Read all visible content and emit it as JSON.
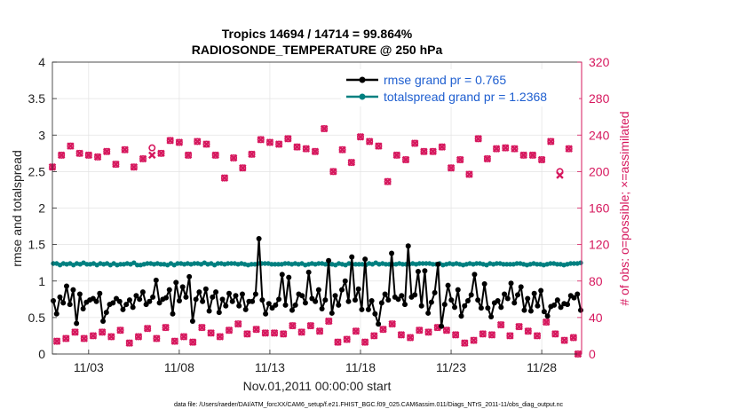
{
  "chart_data": {
    "type": "line",
    "title_line1": "Tropics 14694 / 14714 = 99.864%",
    "title_line2": "RADIOSONDE_TEMPERATURE @ 250 hPa",
    "xlabel": "Nov.01,2011 00:00:00 start",
    "ylabel_left": "rmse and totalspread",
    "ylabel_right": "# of obs: o=possible; ×=assimilated",
    "footer": "data file: /Users/raeder/DAI/ATM_forcXX/CAM6_setup/f.e21.FHIST_BGC.f09_025.CAM6assim.011/Diags_NTrS_2011-11/obs_diag_output.nc",
    "xlim": [
      1,
      30.2
    ],
    "ylim_left": [
      0,
      4
    ],
    "ylim_right": [
      0,
      320
    ],
    "x_ticks": [
      3,
      8,
      13,
      18,
      23,
      28
    ],
    "x_tick_labels": [
      "11/03",
      "11/08",
      "11/13",
      "11/18",
      "11/23",
      "11/28"
    ],
    "y_left_ticks": [
      0,
      0.5,
      1,
      1.5,
      2,
      2.5,
      3,
      3.5,
      4
    ],
    "y_left_tick_labels": [
      "0",
      "0.5",
      "1",
      "1.5",
      "2",
      "2.5",
      "3",
      "3.5",
      "4"
    ],
    "y_right_ticks": [
      0,
      40,
      80,
      120,
      160,
      200,
      240,
      280,
      320
    ],
    "y_right_tick_labels": [
      "0",
      "40",
      "80",
      "120",
      "160",
      "200",
      "240",
      "280",
      "320"
    ],
    "colors": {
      "rmse": "#000000",
      "spread": "#008080",
      "obs": "#d6185e",
      "legend_text": "#1f5fd0"
    },
    "series": [
      {
        "name": "rmse grand pr = 0.765",
        "axis": "left",
        "values": [
          0.73,
          0.55,
          0.78,
          0.7,
          0.93,
          0.68,
          0.88,
          0.42,
          0.82,
          0.62,
          0.71,
          0.74,
          0.76,
          0.72,
          0.83,
          0.45,
          0.57,
          0.68,
          0.7,
          0.76,
          0.72,
          0.61,
          0.68,
          0.74,
          0.64,
          0.8,
          0.75,
          0.85,
          0.68,
          0.72,
          0.78,
          1.01,
          0.7,
          0.75,
          0.77,
          0.88,
          0.55,
          0.98,
          0.73,
          0.92,
          0.78,
          1.06,
          0.45,
          0.75,
          0.85,
          0.72,
          0.89,
          0.59,
          0.78,
          0.85,
          0.57,
          0.75,
          0.66,
          0.83,
          0.72,
          0.8,
          0.66,
          0.82,
          0.61,
          0.72,
          0.72,
          0.82,
          1.58,
          0.74,
          0.55,
          0.69,
          0.63,
          0.67,
          0.75,
          1.09,
          0.67,
          1.05,
          0.6,
          0.67,
          0.82,
          0.8,
          0.7,
          1.12,
          0.76,
          0.72,
          0.88,
          0.62,
          0.74,
          1.28,
          0.56,
          0.8,
          0.67,
          0.88,
          1.0,
          0.72,
          1.33,
          0.74,
          0.89,
          0.61,
          1.3,
          0.61,
          0.73,
          0.55,
          0.41,
          0.7,
          0.82,
          0.74,
          1.38,
          0.78,
          0.75,
          0.8,
          0.68,
          1.48,
          0.78,
          0.81,
          1.13,
          0.66,
          1.14,
          0.56,
          0.71,
          0.84,
          1.23,
          0.38,
          0.68,
          0.94,
          0.74,
          0.64,
          0.88,
          0.52,
          0.66,
          0.73,
          0.81,
          1.09,
          0.74,
          0.63,
          0.96,
          0.63,
          0.51,
          0.7,
          0.73,
          0.64,
          0.82,
          0.76,
          0.97,
          0.7,
          0.81,
          0.92,
          0.6,
          0.76,
          0.59,
          0.83,
          0.66,
          0.87,
          0.58,
          0.52,
          0.65,
          0.67,
          0.74,
          0.64,
          0.69,
          0.68,
          0.8,
          0.77,
          0.82,
          0.6
        ]
      },
      {
        "name": "totalspread grand pr = 1.2368",
        "axis": "left",
        "values": [
          1.24,
          1.24,
          1.22,
          1.24,
          1.23,
          1.24,
          1.22,
          1.24,
          1.23,
          1.25,
          1.23,
          1.23,
          1.24,
          1.22,
          1.24,
          1.23,
          1.24,
          1.22,
          1.24,
          1.22,
          1.23,
          1.23,
          1.24,
          1.23,
          1.25,
          1.22,
          1.22,
          1.23,
          1.24,
          1.24,
          1.23,
          1.24,
          1.23,
          1.23,
          1.22,
          1.24,
          1.22,
          1.24,
          1.24,
          1.23,
          1.24,
          1.23,
          1.24,
          1.24,
          1.23,
          1.25,
          1.23,
          1.24,
          1.22,
          1.24,
          1.24,
          1.23,
          1.24,
          1.24,
          1.24,
          1.23,
          1.24,
          1.23,
          1.22,
          1.23,
          1.23,
          1.24,
          1.24,
          1.24,
          1.24,
          1.23,
          1.23,
          1.23,
          1.23,
          1.24,
          1.24,
          1.23,
          1.24,
          1.23,
          1.24,
          1.22,
          1.23,
          1.24,
          1.23,
          1.24,
          1.24,
          1.23,
          1.23,
          1.23,
          1.22,
          1.24,
          1.23,
          1.22,
          1.24,
          1.23,
          1.23,
          1.23,
          1.23,
          1.22,
          1.24,
          1.23,
          1.25,
          1.23,
          1.24,
          1.23,
          1.23,
          1.23,
          1.23,
          1.24,
          1.23,
          1.23,
          1.23,
          1.24,
          1.23,
          1.24,
          1.24,
          1.24,
          1.24,
          1.23,
          1.23,
          1.24,
          1.22,
          1.23,
          1.24,
          1.23,
          1.24,
          1.23,
          1.22,
          1.23,
          1.24,
          1.23,
          1.24,
          1.24,
          1.23,
          1.22,
          1.24,
          1.23,
          1.24,
          1.24,
          1.23,
          1.23,
          1.23,
          1.23,
          1.24,
          1.24,
          1.23,
          1.22,
          1.23,
          1.24,
          1.23,
          1.23,
          1.22,
          1.23,
          1.24,
          1.24,
          1.23,
          1.23,
          1.22,
          1.23,
          1.24,
          1.24,
          1.24,
          1.25
        ]
      }
    ],
    "obs_possible": {
      "axis": "right",
      "x": [
        1,
        1.25,
        1.5,
        1.75,
        2,
        2.25,
        2.5,
        2.75,
        3,
        3.25,
        3.5,
        3.75,
        4,
        4.25,
        4.5,
        4.75,
        5,
        5.25,
        5.5,
        5.75,
        6,
        6.25,
        6.5,
        6.75,
        7,
        7.25,
        7.5,
        7.75,
        8,
        8.25,
        8.5,
        8.75,
        9,
        9.25,
        9.5,
        9.75,
        10,
        10.25,
        10.5,
        10.75,
        11,
        11.25,
        11.5,
        11.75,
        12,
        12.25,
        12.5,
        12.75,
        13,
        13.25,
        13.5,
        13.75,
        14,
        14.25,
        14.5,
        14.75,
        15,
        15.25,
        15.5,
        15.75,
        16,
        16.25,
        16.5,
        16.75,
        17,
        17.25,
        17.5,
        17.75,
        18,
        18.25,
        18.5,
        18.75,
        19,
        19.25,
        19.5,
        19.75,
        20,
        20.25,
        20.5,
        20.75,
        21,
        21.25,
        21.5,
        21.75,
        22,
        22.25,
        22.5,
        22.75,
        23,
        23.25,
        23.5,
        23.75,
        24,
        24.25,
        24.5,
        24.75,
        25,
        25.25,
        25.5,
        25.75,
        26,
        26.25,
        26.5,
        26.75,
        27,
        27.25,
        27.5,
        27.75,
        28,
        28.25,
        28.5,
        28.75,
        29,
        29.25,
        29.5,
        29.75,
        30
      ],
      "values": [
        205,
        14,
        218,
        17,
        228,
        24,
        220,
        17,
        218,
        20,
        216,
        24,
        222,
        19,
        208,
        26,
        224,
        12,
        205,
        19,
        214,
        28,
        226,
        17,
        220,
        29,
        234,
        14,
        232,
        19,
        218,
        13,
        233,
        29,
        230,
        23,
        218,
        19,
        193,
        26,
        215,
        33,
        204,
        22,
        219,
        27,
        235,
        23,
        232,
        23,
        230,
        22,
        236,
        31,
        227,
        24,
        225,
        31,
        222,
        25,
        247,
        36,
        200,
        13,
        224,
        16,
        210,
        25,
        238,
        13,
        233,
        20,
        228,
        27,
        189,
        33,
        218,
        21,
        213,
        18,
        231,
        26,
        222,
        24,
        222,
        29,
        227,
        26,
        204,
        21,
        213,
        12,
        197,
        15,
        236,
        22,
        214,
        21,
        225,
        32,
        226,
        20,
        225,
        30,
        218,
        25,
        218,
        20,
        213,
        35,
        233,
        22,
        200,
        15,
        225,
        18,
        0
      ]
    },
    "obs_assimilated": {
      "axis": "right",
      "x": [
        1,
        1.25,
        1.5,
        1.75,
        2,
        2.25,
        2.5,
        2.75,
        3,
        3.25,
        3.5,
        3.75,
        4,
        4.25,
        4.5,
        4.75,
        5,
        5.25,
        5.5,
        5.75,
        6,
        6.25,
        6.5,
        6.75,
        7,
        7.25,
        7.5,
        7.75,
        8,
        8.25,
        8.5,
        8.75,
        9,
        9.25,
        9.5,
        9.75,
        10,
        10.25,
        10.5,
        10.75,
        11,
        11.25,
        11.5,
        11.75,
        12,
        12.25,
        12.5,
        12.75,
        13,
        13.25,
        13.5,
        13.75,
        14,
        14.25,
        14.5,
        14.75,
        15,
        15.25,
        15.5,
        15.75,
        16,
        16.25,
        16.5,
        16.75,
        17,
        17.25,
        17.5,
        17.75,
        18,
        18.25,
        18.5,
        18.75,
        19,
        19.25,
        19.5,
        19.75,
        20,
        20.25,
        20.5,
        20.75,
        21,
        21.25,
        21.5,
        21.75,
        22,
        22.25,
        22.5,
        22.75,
        23,
        23.25,
        23.5,
        23.75,
        24,
        24.25,
        24.5,
        24.75,
        25,
        25.25,
        25.5,
        25.75,
        26,
        26.25,
        26.5,
        26.75,
        27,
        27.25,
        27.5,
        27.75,
        28,
        28.25,
        28.5,
        28.75,
        29,
        29.25,
        29.5,
        29.75,
        30
      ],
      "values": [
        205,
        14,
        218,
        17,
        228,
        24,
        220,
        17,
        218,
        20,
        216,
        24,
        222,
        19,
        208,
        26,
        224,
        12,
        205,
        19,
        214,
        28,
        218,
        17,
        220,
        29,
        234,
        14,
        232,
        19,
        218,
        13,
        233,
        29,
        230,
        23,
        218,
        19,
        193,
        26,
        215,
        33,
        204,
        22,
        219,
        27,
        235,
        23,
        232,
        23,
        230,
        22,
        236,
        31,
        227,
        24,
        225,
        31,
        222,
        25,
        247,
        36,
        200,
        13,
        224,
        16,
        210,
        25,
        238,
        13,
        233,
        20,
        228,
        27,
        189,
        33,
        218,
        21,
        213,
        18,
        231,
        26,
        222,
        24,
        222,
        29,
        227,
        26,
        204,
        21,
        213,
        12,
        197,
        15,
        236,
        22,
        214,
        21,
        225,
        32,
        226,
        20,
        225,
        30,
        218,
        25,
        218,
        20,
        213,
        35,
        233,
        22,
        196,
        15,
        225,
        18,
        0
      ]
    }
  }
}
